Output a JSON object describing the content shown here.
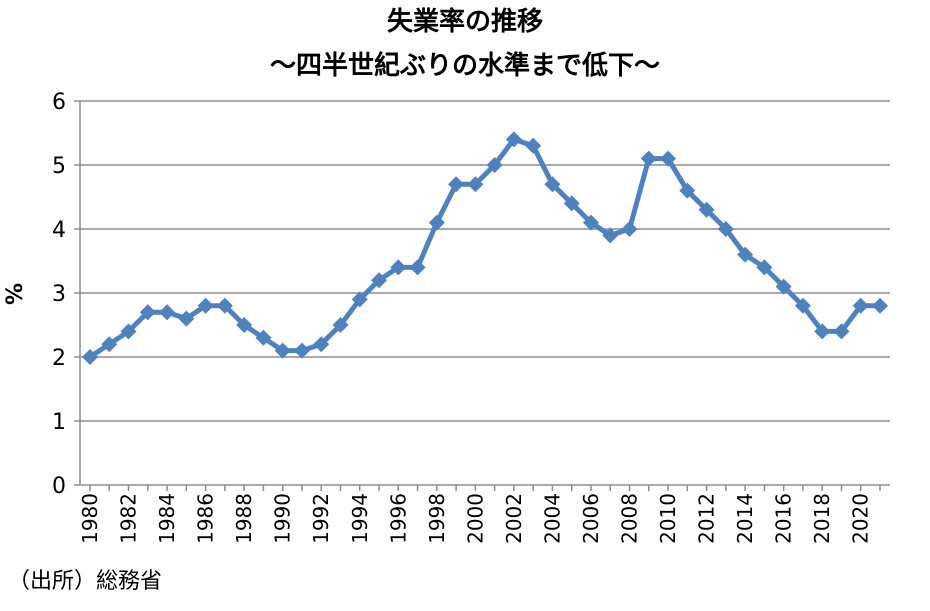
{
  "chart_data": {
    "type": "line",
    "title": "失業率の推移",
    "subtitle": "～四半世紀ぶりの水準まで低下～",
    "xlabel": "",
    "ylabel": "%",
    "ylim": [
      0,
      6
    ],
    "yticks": [
      "0",
      "1",
      "2",
      "3",
      "4",
      "5",
      "6"
    ],
    "grid": true,
    "legend": "none",
    "x": [
      1980,
      1981,
      1982,
      1983,
      1984,
      1985,
      1986,
      1987,
      1988,
      1989,
      1990,
      1991,
      1992,
      1993,
      1994,
      1995,
      1996,
      1997,
      1998,
      1999,
      2000,
      2001,
      2002,
      2003,
      2004,
      2005,
      2006,
      2007,
      2008,
      2009,
      2010,
      2011,
      2012,
      2013,
      2014,
      2015,
      2016,
      2017,
      2018,
      2019,
      2020,
      2021
    ],
    "xticks": [
      "1980",
      "1982",
      "1984",
      "1986",
      "1988",
      "1990",
      "1992",
      "1994",
      "1996",
      "1998",
      "2000",
      "2002",
      "2004",
      "2006",
      "2008",
      "2010",
      "2012",
      "2014",
      "2016",
      "2018",
      "2020"
    ],
    "series": [
      {
        "values": [
          2.0,
          2.2,
          2.4,
          2.7,
          2.7,
          2.6,
          2.8,
          2.8,
          2.5,
          2.3,
          2.1,
          2.1,
          2.2,
          2.5,
          2.9,
          3.2,
          3.4,
          3.4,
          4.1,
          4.7,
          4.7,
          5.0,
          5.4,
          5.3,
          4.7,
          4.4,
          4.1,
          3.9,
          4.0,
          5.1,
          5.1,
          4.6,
          4.3,
          4.0,
          3.6,
          3.4,
          3.1,
          2.8,
          2.4,
          2.4,
          2.8,
          2.8
        ],
        "color": "#4F81BD"
      }
    ]
  },
  "source": "（出所）総務省"
}
